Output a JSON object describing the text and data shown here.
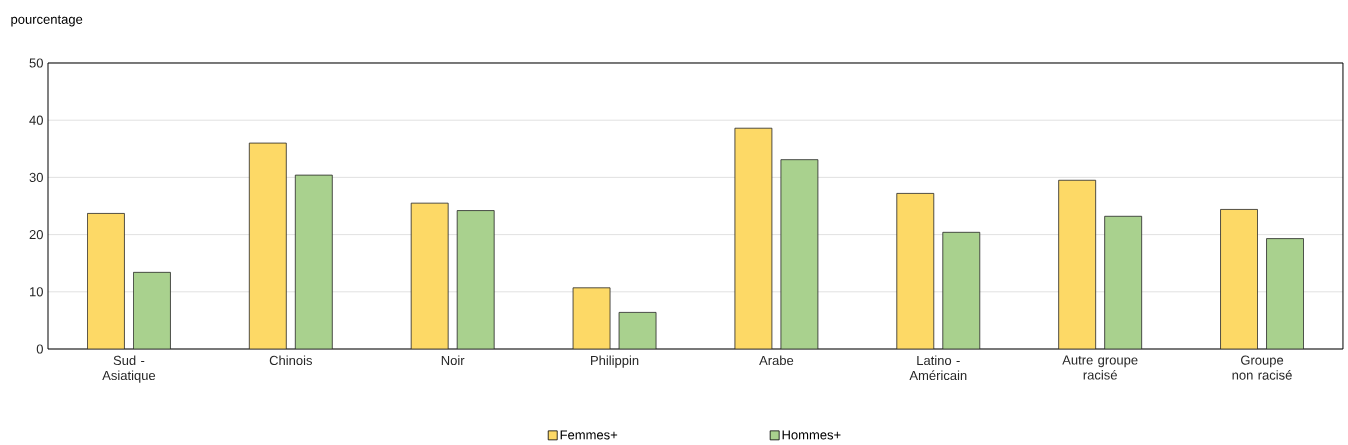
{
  "chart_data": {
    "type": "bar",
    "ylabel": "pourcentage",
    "categories": [
      "Sud - Asiatique",
      "Chinois",
      "Noir",
      "Philippin",
      "Arabe",
      "Latino - Américain",
      "Autre groupe racisé",
      "Groupe non racisé"
    ],
    "series": [
      {
        "name": "Femmes+",
        "color": "#fdd966",
        "values": [
          23.7,
          36.0,
          25.5,
          10.7,
          38.6,
          27.2,
          29.5,
          24.4
        ]
      },
      {
        "name": "Hommes+",
        "color": "#a9d18e",
        "values": [
          13.4,
          30.4,
          24.2,
          6.4,
          33.1,
          20.4,
          23.2,
          19.3
        ]
      }
    ],
    "ylim": [
      0,
      50
    ],
    "yticks": [
      0,
      10,
      20,
      30,
      40,
      50
    ],
    "grid": "y",
    "legend": "bottom"
  }
}
